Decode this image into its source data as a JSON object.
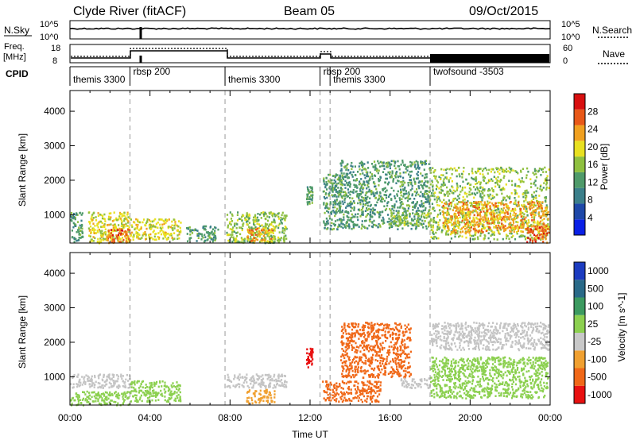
{
  "header": {
    "station": "Clyde River (fitACF)",
    "beam": "Beam 05",
    "date": "09/Oct/2015"
  },
  "strip_labels": {
    "nsky": "N.Sky",
    "nsearch": "N.Search",
    "freq_top": "Freq.",
    "freq_unit": "[MHz]",
    "nave": "Nave",
    "cpid": "CPID"
  },
  "strip_ticks": {
    "nsky_top": "10^5",
    "nsky_bottom": "10^0",
    "freq_top": "18",
    "freq_bottom": "8",
    "nave_top": "60",
    "nave_bottom": "0"
  },
  "cpid_segments": [
    {
      "label": "themis 3300",
      "start": 0.0,
      "end": 3.0
    },
    {
      "label": "rbsp 200",
      "start": 3.0,
      "end": 7.75
    },
    {
      "label": "themis 3300",
      "start": 7.75,
      "end": 12.5
    },
    {
      "label": "rbsp 200",
      "start": 12.5,
      "end": 13.0
    },
    {
      "label": "themis 3300",
      "start": 13.0,
      "end": 18.0
    },
    {
      "label": "twofsound -3503",
      "start": 18.0,
      "end": 24.0
    }
  ],
  "colors": {
    "power": [
      "#0a20e6",
      "#1e48a8",
      "#3b7f8a",
      "#4f9a6a",
      "#8fc040",
      "#e8e020",
      "#f0a020",
      "#e85818",
      "#d81010"
    ],
    "velocity": [
      "#e81010",
      "#f06818",
      "#f0a030",
      "#c8c8c8",
      "#8cd050",
      "#3c9a60",
      "#2a6a88",
      "#1c3cc0"
    ],
    "ground_scatter": "#c4c4c4"
  },
  "chart_data": [
    {
      "type": "heatmap",
      "title": "",
      "xlabel": "Time UT",
      "ylabel": "Slant Range [km]",
      "xlim": [
        0,
        24
      ],
      "ylim": [
        180,
        4600
      ],
      "x_tick_labels": [
        "00:00",
        "04:00",
        "08:00",
        "12:00",
        "16:00",
        "20:00",
        "00:00"
      ],
      "y_ticks": [
        1000,
        2000,
        3000,
        4000
      ],
      "colorbar": {
        "label": "Power [dB]",
        "range": [
          0,
          32
        ],
        "ticks": [
          4,
          8,
          12,
          16,
          20,
          24,
          28
        ]
      },
      "echo_regions": [
        {
          "t": [
            0.0,
            0.6
          ],
          "r": [
            200,
            1100
          ],
          "v": 12
        },
        {
          "t": [
            0.9,
            3.0
          ],
          "r": [
            200,
            1100
          ],
          "v": 20
        },
        {
          "t": [
            1.8,
            3.0
          ],
          "r": [
            200,
            600
          ],
          "v": 28
        },
        {
          "t": [
            3.0,
            5.5
          ],
          "r": [
            300,
            900
          ],
          "v": 20
        },
        {
          "t": [
            5.8,
            7.4
          ],
          "r": [
            250,
            700
          ],
          "v": 12
        },
        {
          "t": [
            7.8,
            10.8
          ],
          "r": [
            200,
            1100
          ],
          "v": 16
        },
        {
          "t": [
            8.8,
            10.2
          ],
          "r": [
            250,
            650
          ],
          "v": 24
        },
        {
          "t": [
            11.8,
            12.1
          ],
          "r": [
            1300,
            1850
          ],
          "v": 12
        },
        {
          "t": [
            12.6,
            13.5
          ],
          "r": [
            600,
            2200
          ],
          "v": 12
        },
        {
          "t": [
            13.4,
            18.0
          ],
          "r": [
            600,
            2600
          ],
          "v": 12
        },
        {
          "t": [
            16.0,
            18.0
          ],
          "r": [
            700,
            1100
          ],
          "v": 16
        },
        {
          "t": [
            18.0,
            23.9
          ],
          "r": [
            300,
            2400
          ],
          "v": 16
        },
        {
          "t": [
            18.6,
            23.9
          ],
          "r": [
            500,
            1400
          ],
          "v": 24
        },
        {
          "t": [
            22.8,
            23.9
          ],
          "r": [
            200,
            700
          ],
          "v": 28
        }
      ]
    },
    {
      "type": "heatmap",
      "title": "",
      "xlabel": "Time UT",
      "ylabel": "Slant Range [km]",
      "xlim": [
        0,
        24
      ],
      "ylim": [
        180,
        4600
      ],
      "x_tick_labels": [
        "00:00",
        "04:00",
        "08:00",
        "12:00",
        "16:00",
        "20:00",
        "00:00"
      ],
      "y_ticks": [
        1000,
        2000,
        3000,
        4000
      ],
      "colorbar": {
        "label": "Velocity [m s^-1]",
        "tick_labels": [
          "1000",
          "500",
          "100",
          "25",
          "-25",
          "-100",
          "-500",
          "-1000"
        ]
      },
      "echo_regions": [
        {
          "t": [
            0.0,
            3.0
          ],
          "r": [
            700,
            1100
          ],
          "v": "gs"
        },
        {
          "t": [
            0.0,
            3.0
          ],
          "r": [
            200,
            600
          ],
          "v": 100
        },
        {
          "t": [
            3.0,
            5.5
          ],
          "r": [
            300,
            900
          ],
          "v": 100
        },
        {
          "t": [
            7.8,
            10.8
          ],
          "r": [
            700,
            1100
          ],
          "v": "gs"
        },
        {
          "t": [
            8.8,
            10.2
          ],
          "r": [
            250,
            650
          ],
          "v": -25
        },
        {
          "t": [
            11.8,
            12.1
          ],
          "r": [
            1300,
            1850
          ],
          "v": -500
        },
        {
          "t": [
            12.6,
            15.5
          ],
          "r": [
            300,
            900
          ],
          "v": -100
        },
        {
          "t": [
            13.5,
            17.0
          ],
          "r": [
            1000,
            2600
          ],
          "v": -100
        },
        {
          "t": [
            16.5,
            18.0
          ],
          "r": [
            700,
            1000
          ],
          "v": "gs"
        },
        {
          "t": [
            18.0,
            23.9
          ],
          "r": [
            1800,
            2600
          ],
          "v": "gs"
        },
        {
          "t": [
            18.0,
            23.9
          ],
          "r": [
            400,
            1600
          ],
          "v": 100
        }
      ]
    }
  ]
}
